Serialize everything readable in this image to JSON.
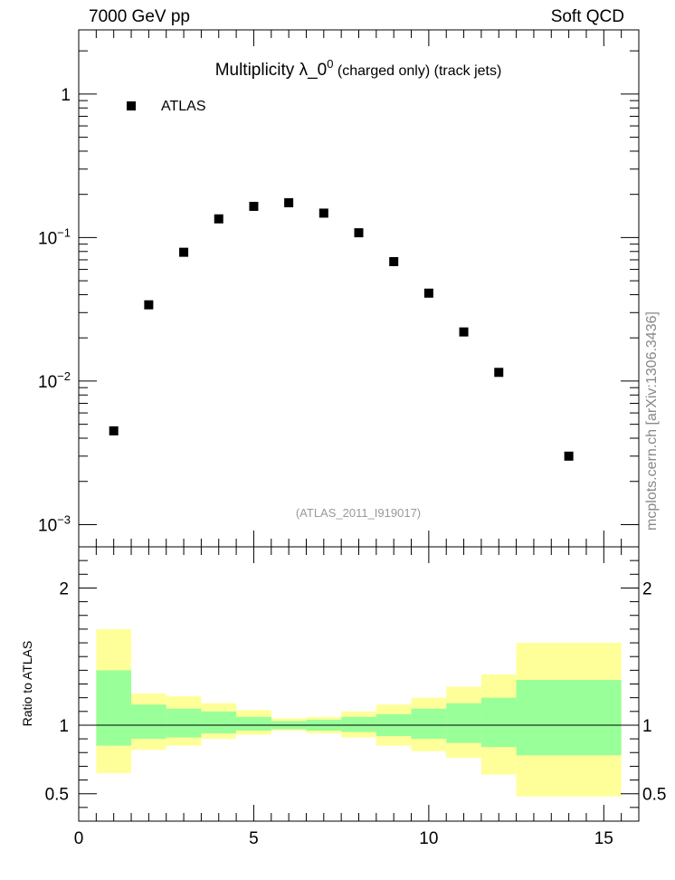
{
  "header": {
    "left": "7000 GeV pp",
    "right": "Soft QCD"
  },
  "side_label": "mcplots.cern.ch [arXiv:1306.3436]",
  "chart_data": [
    {
      "type": "scatter",
      "title_main": "Multiplicity  λ_0",
      "title_sup": "0",
      "title_suffix": " (charged only) (track jets)",
      "legend": [
        {
          "name": "ATLAS",
          "marker": "square",
          "color": "#000000"
        }
      ],
      "legend_position": "top-left",
      "watermark": "(ATLAS_2011_I919017)",
      "yscale": "log",
      "ylim": [
        0.0007,
        2.8
      ],
      "xlim": [
        0,
        16
      ],
      "y_ticks": [
        {
          "value": 1,
          "base": "1",
          "exp": ""
        },
        {
          "value": 0.1,
          "base": "10",
          "exp": "−1"
        },
        {
          "value": 0.01,
          "base": "10",
          "exp": "−2"
        },
        {
          "value": 0.001,
          "base": "10",
          "exp": "−3"
        }
      ],
      "series": [
        {
          "name": "ATLAS",
          "x": [
            1,
            2,
            3,
            4,
            5,
            6,
            7,
            8,
            9,
            10,
            11,
            12,
            14
          ],
          "y": [
            0.0045,
            0.034,
            0.079,
            0.135,
            0.165,
            0.175,
            0.148,
            0.108,
            0.068,
            0.041,
            0.022,
            0.0115,
            0.003
          ]
        }
      ]
    },
    {
      "type": "area",
      "ylabel": "Ratio to ATLAS",
      "ylim": [
        0.3,
        2.3
      ],
      "xlim": [
        0,
        16
      ],
      "y_ticks": [
        {
          "value": 2,
          "label": "2"
        },
        {
          "value": 1,
          "label": "1"
        },
        {
          "value": 0.5,
          "label": "0.5"
        }
      ],
      "x_ticks": [
        {
          "value": 0,
          "label": "0"
        },
        {
          "value": 5,
          "label": "5"
        },
        {
          "value": 10,
          "label": "10"
        },
        {
          "value": 15,
          "label": "15"
        }
      ],
      "reference_line": 1,
      "bins": [
        {
          "lo": 0.5,
          "hi": 1.5,
          "inner": [
            0.85,
            1.4
          ],
          "outer": [
            0.65,
            1.7
          ]
        },
        {
          "lo": 1.5,
          "hi": 2.5,
          "inner": [
            0.9,
            1.15
          ],
          "outer": [
            0.82,
            1.23
          ]
        },
        {
          "lo": 2.5,
          "hi": 3.5,
          "inner": [
            0.91,
            1.12
          ],
          "outer": [
            0.85,
            1.21
          ]
        },
        {
          "lo": 3.5,
          "hi": 4.5,
          "inner": [
            0.94,
            1.1
          ],
          "outer": [
            0.9,
            1.16
          ]
        },
        {
          "lo": 4.5,
          "hi": 5.5,
          "inner": [
            0.96,
            1.06
          ],
          "outer": [
            0.93,
            1.11
          ]
        },
        {
          "lo": 5.5,
          "hi": 6.5,
          "inner": [
            0.97,
            1.03
          ],
          "outer": [
            0.96,
            1.05
          ]
        },
        {
          "lo": 6.5,
          "hi": 7.5,
          "inner": [
            0.96,
            1.04
          ],
          "outer": [
            0.94,
            1.06
          ]
        },
        {
          "lo": 7.5,
          "hi": 8.5,
          "inner": [
            0.95,
            1.06
          ],
          "outer": [
            0.91,
            1.1
          ]
        },
        {
          "lo": 8.5,
          "hi": 9.5,
          "inner": [
            0.92,
            1.08
          ],
          "outer": [
            0.85,
            1.15
          ]
        },
        {
          "lo": 9.5,
          "hi": 10.5,
          "inner": [
            0.9,
            1.12
          ],
          "outer": [
            0.81,
            1.2
          ]
        },
        {
          "lo": 10.5,
          "hi": 11.5,
          "inner": [
            0.87,
            1.16
          ],
          "outer": [
            0.76,
            1.28
          ]
        },
        {
          "lo": 11.5,
          "hi": 12.5,
          "inner": [
            0.84,
            1.2
          ],
          "outer": [
            0.64,
            1.37
          ]
        },
        {
          "lo": 12.5,
          "hi": 15.5,
          "inner": [
            0.78,
            1.33
          ],
          "outer": [
            0.48,
            1.6
          ]
        }
      ],
      "colors": {
        "inner": "#99ff99",
        "outer": "#ffff99",
        "line": "#000000"
      }
    }
  ]
}
